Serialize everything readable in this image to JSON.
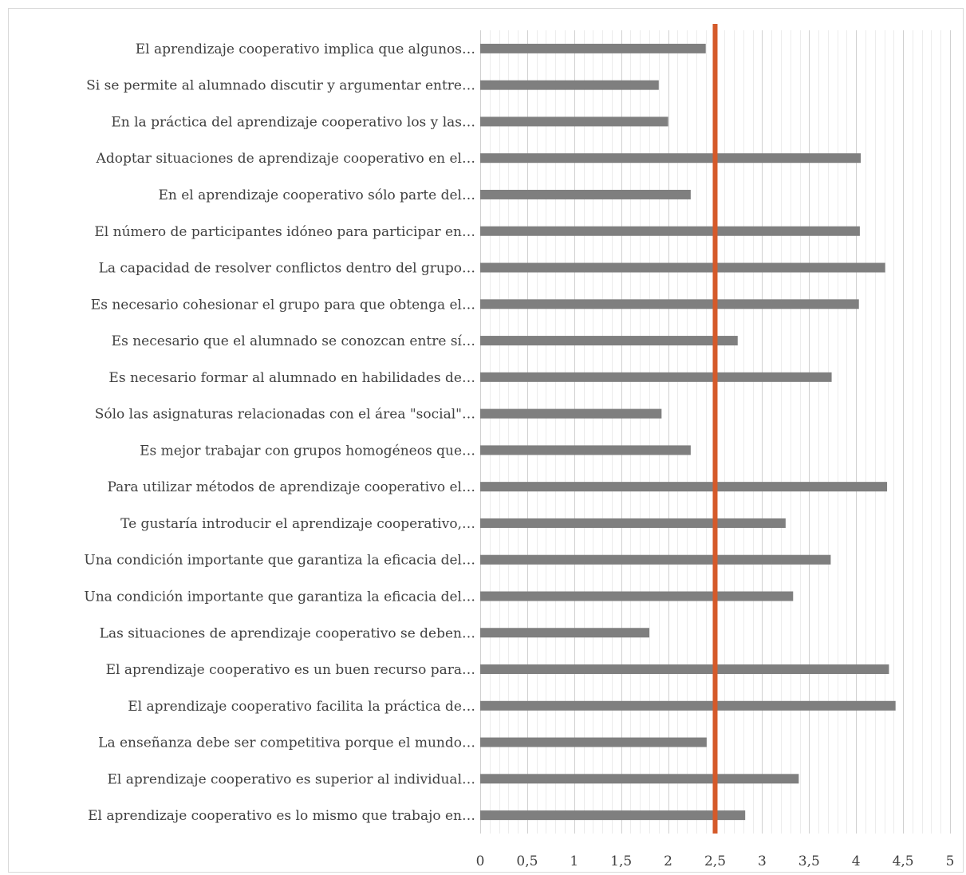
{
  "chart_data": {
    "type": "bar",
    "orientation": "horizontal",
    "title": "",
    "xlabel": "",
    "ylabel": "",
    "xlim": [
      0,
      5
    ],
    "major_tick_step": 0.5,
    "minor_tick_step": 0.1,
    "x_tick_labels": [
      "0",
      "0,5",
      "1",
      "1,5",
      "2",
      "2,5",
      "3",
      "3,5",
      "4",
      "4,5",
      "5"
    ],
    "grid": true,
    "legend": "none",
    "bar_color": "#7f7f7f",
    "reference_line": {
      "value": 2.5,
      "color": "#d55a2a"
    },
    "categories": [
      "El aprendizaje cooperativo implica que algunos…",
      "Si se permite al alumnado discutir y argumentar entre…",
      "En la práctica del aprendizaje cooperativo los y las…",
      "Adoptar situaciones de aprendizaje cooperativo en el…",
      "En el aprendizaje cooperativo sólo  parte del…",
      "El número de participantes idóneo para participar en…",
      "La capacidad de resolver conflictos dentro del grupo…",
      "Es necesario cohesionar el grupo para que obtenga el…",
      "Es necesario que el alumnado se conozcan entre sí…",
      "Es necesario formar al alumnado en habilidades de…",
      "Sólo las asignaturas relacionadas con el área \"social\"…",
      "Es mejor trabajar con grupos homogéneos que…",
      "Para utilizar métodos de aprendizaje cooperativo el…",
      "Te gustaría introducir el aprendizaje cooperativo,…",
      "Una condición importante que garantiza la eficacia del…",
      "Una condición importante que garantiza la eficacia del…",
      "Las situaciones de aprendizaje cooperativo se deben…",
      "El aprendizaje cooperativo es un buen recurso para…",
      "El aprendizaje cooperativo facilita la práctica de…",
      "La enseñanza debe ser competitiva porque el mundo…",
      "El aprendizaje cooperativo es superior al individual…",
      "El aprendizaje cooperativo es lo mismo que trabajo en…"
    ],
    "values": [
      2.4,
      1.9,
      2.0,
      4.05,
      2.24,
      4.04,
      4.31,
      4.03,
      2.74,
      3.74,
      1.93,
      2.24,
      4.33,
      3.25,
      3.73,
      3.33,
      1.8,
      4.35,
      4.42,
      2.41,
      3.39,
      2.82
    ]
  }
}
